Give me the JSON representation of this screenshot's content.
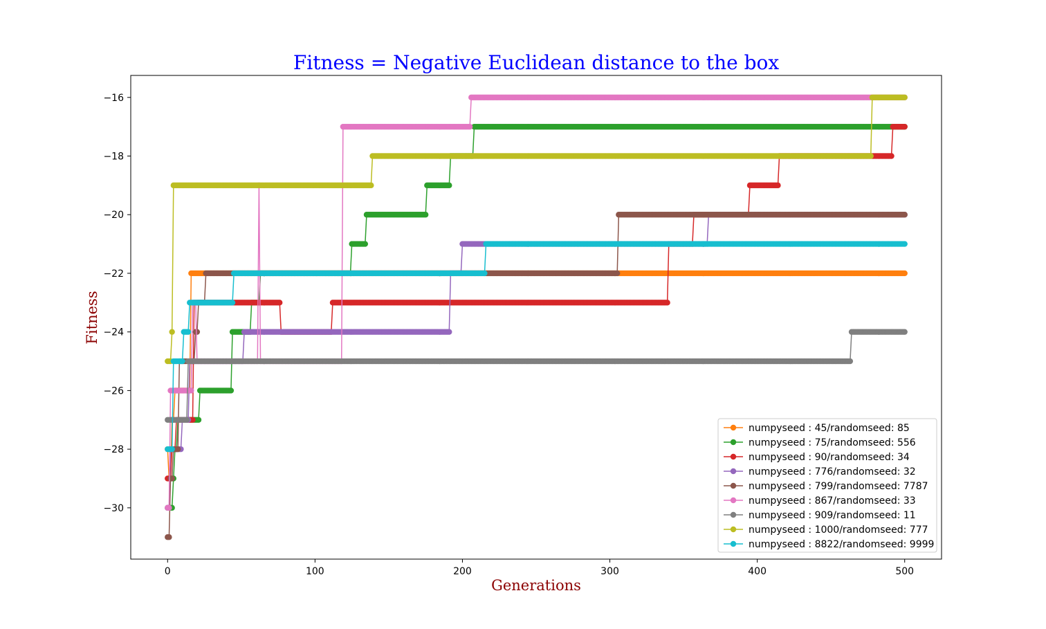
{
  "chart_data": {
    "type": "line",
    "title": "Fitness =  Negative Euclidean distance to the box",
    "title_color": "#0000ff",
    "xlabel": "Generations",
    "ylabel": "Fitness",
    "label_color": "#8b0000",
    "xlim": [
      -25,
      525
    ],
    "ylim": [
      -31.75,
      -15.25
    ],
    "xticks": [
      0,
      100,
      200,
      300,
      400,
      500
    ],
    "yticks": [
      -30,
      -28,
      -26,
      -24,
      -22,
      -20,
      -18,
      -16
    ],
    "xtick_labels": [
      "0",
      "100",
      "200",
      "300",
      "400",
      "500"
    ],
    "ytick_labels": [
      "−30",
      "−28",
      "−26",
      "−24",
      "−22",
      "−20",
      "−18",
      "−16"
    ],
    "legend_position": "lower-right",
    "grid": false,
    "series": [
      {
        "name": "numpyseed : 45/randomseed: 85",
        "color": "#ff7f0e",
        "steps": [
          [
            0,
            -28
          ],
          [
            1,
            -29
          ],
          [
            3,
            -27
          ],
          [
            5,
            -26
          ],
          [
            16,
            -22
          ],
          [
            500,
            -22
          ]
        ]
      },
      {
        "name": "numpyseed : 75/randomseed: 556",
        "color": "#2ca02c",
        "steps": [
          [
            0,
            -30
          ],
          [
            4,
            -29
          ],
          [
            5,
            -28
          ],
          [
            7,
            -27
          ],
          [
            22,
            -26
          ],
          [
            44,
            -24
          ],
          [
            57,
            -23
          ],
          [
            63,
            -22
          ],
          [
            125,
            -21
          ],
          [
            135,
            -20
          ],
          [
            176,
            -19
          ],
          [
            192,
            -18
          ],
          [
            208,
            -17
          ],
          [
            500,
            -17
          ]
        ]
      },
      {
        "name": "numpyseed : 90/randomseed: 34",
        "color": "#d62728",
        "steps": [
          [
            0,
            -29
          ],
          [
            3,
            -28
          ],
          [
            6,
            -27
          ],
          [
            18,
            -23
          ],
          [
            77,
            -24
          ],
          [
            112,
            -23
          ],
          [
            340,
            -21
          ],
          [
            357,
            -20
          ],
          [
            395,
            -19
          ],
          [
            415,
            -18
          ],
          [
            492,
            -17
          ],
          [
            500,
            -17
          ]
        ]
      },
      {
        "name": "numpyseed : 776/randomseed: 32",
        "color": "#9467bd",
        "steps": [
          [
            0,
            -30
          ],
          [
            2,
            -28
          ],
          [
            8,
            -28
          ],
          [
            10,
            -27
          ],
          [
            15,
            -25
          ],
          [
            51,
            -25
          ],
          [
            52,
            -24
          ],
          [
            192,
            -22
          ],
          [
            200,
            -21
          ],
          [
            367,
            -20
          ],
          [
            500,
            -20
          ]
        ]
      },
      {
        "name": "numpyseed : 799/randomseed: 7787",
        "color": "#8c564b",
        "steps": [
          [
            0,
            -31
          ],
          [
            2,
            -29
          ],
          [
            4,
            -28
          ],
          [
            8,
            -25
          ],
          [
            19,
            -24
          ],
          [
            21,
            -23
          ],
          [
            26,
            -22
          ],
          [
            306,
            -20
          ],
          [
            500,
            -20
          ]
        ]
      },
      {
        "name": "numpyseed : 867/randomseed: 33",
        "color": "#e377c2",
        "steps": [
          [
            0,
            -30
          ],
          [
            2,
            -26
          ],
          [
            17,
            -23
          ],
          [
            20,
            -25
          ],
          [
            62,
            -19
          ],
          [
            63,
            -25
          ],
          [
            72,
            -25
          ],
          [
            119,
            -17
          ],
          [
            206,
            -16
          ],
          [
            500,
            -16
          ]
        ]
      },
      {
        "name": "numpyseed : 909/randomseed: 11",
        "color": "#7f7f7f",
        "steps": [
          [
            0,
            -27
          ],
          [
            14,
            -25
          ],
          [
            464,
            -24
          ],
          [
            500,
            -24
          ]
        ]
      },
      {
        "name": "numpyseed : 1000/randomseed: 777",
        "color": "#bcbd22",
        "steps": [
          [
            0,
            -25
          ],
          [
            3,
            -24
          ],
          [
            4,
            -19
          ],
          [
            139,
            -18
          ],
          [
            478,
            -16
          ],
          [
            500,
            -16
          ]
        ]
      },
      {
        "name": "numpyseed : 8822/randomseed: 9999",
        "color": "#17becf",
        "steps": [
          [
            0,
            -28
          ],
          [
            4,
            -25
          ],
          [
            11,
            -24
          ],
          [
            15,
            -23
          ],
          [
            45,
            -22
          ],
          [
            216,
            -21
          ],
          [
            500,
            -21
          ]
        ]
      }
    ]
  }
}
